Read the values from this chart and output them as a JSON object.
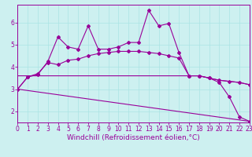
{
  "xlabel": "Windchill (Refroidissement éolien,°C)",
  "background_color": "#cdf0f0",
  "line_color": "#990099",
  "grid_color": "#aae4e4",
  "x_ticks": [
    0,
    1,
    2,
    3,
    4,
    5,
    6,
    7,
    8,
    9,
    10,
    11,
    12,
    13,
    14,
    15,
    16,
    17,
    18,
    19,
    20,
    21,
    22,
    23
  ],
  "y_ticks": [
    2,
    3,
    4,
    5,
    6
  ],
  "xlim": [
    0,
    23
  ],
  "ylim": [
    1.5,
    6.8
  ],
  "series1_x": [
    0,
    1,
    2,
    3,
    4,
    5,
    6,
    7,
    8,
    9,
    10,
    11,
    12,
    13,
    14,
    15,
    16,
    17,
    18,
    19,
    20,
    21,
    22,
    23
  ],
  "series1_y": [
    3.0,
    3.55,
    3.65,
    4.25,
    5.35,
    4.9,
    4.8,
    5.85,
    4.8,
    4.8,
    4.9,
    5.1,
    5.1,
    6.55,
    5.85,
    5.95,
    4.65,
    3.6,
    3.6,
    3.5,
    3.3,
    2.65,
    1.75,
    1.55
  ],
  "series2_x": [
    0,
    1,
    2,
    3,
    4,
    5,
    6,
    7,
    8,
    9,
    10,
    11,
    12,
    13,
    14,
    15,
    16,
    17,
    18,
    19,
    20,
    21,
    22,
    23
  ],
  "series2_y": [
    3.0,
    3.55,
    3.7,
    4.2,
    4.1,
    4.3,
    4.35,
    4.5,
    4.6,
    4.65,
    4.7,
    4.7,
    4.7,
    4.65,
    4.6,
    4.5,
    4.4,
    3.6,
    3.6,
    3.5,
    3.4,
    3.35,
    3.3,
    3.2
  ],
  "series3_x": [
    0,
    17,
    18,
    19,
    20,
    21,
    22,
    23
  ],
  "series3_y": [
    3.6,
    3.6,
    3.6,
    3.5,
    3.4,
    3.35,
    3.3,
    3.2
  ],
  "series4_x": [
    0,
    23
  ],
  "series4_y": [
    3.0,
    1.55
  ],
  "tick_fontsize": 5.5,
  "xlabel_fontsize": 6.5
}
